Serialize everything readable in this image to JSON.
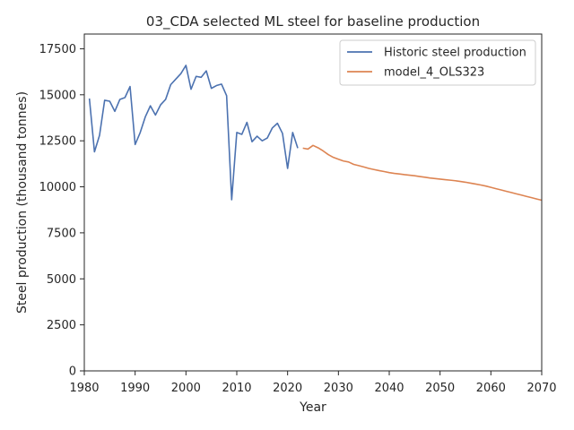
{
  "chart_data": {
    "type": "line",
    "title": "03_CDA selected ML steel for baseline production",
    "xlabel": "Year",
    "ylabel": "Steel production (thousand tonnes)",
    "xlim": [
      1980,
      2070
    ],
    "ylim": [
      0,
      18300
    ],
    "xticks": [
      1980,
      1990,
      2000,
      2010,
      2020,
      2030,
      2040,
      2050,
      2060,
      2070
    ],
    "yticks": [
      0,
      2500,
      5000,
      7500,
      10000,
      12500,
      15000,
      17500
    ],
    "grid": false,
    "legend_position": "top-right",
    "series": [
      {
        "name": "Historic steel production",
        "color": "#4c72b0",
        "x": [
          1981,
          1982,
          1983,
          1984,
          1985,
          1986,
          1987,
          1988,
          1989,
          1990,
          1991,
          1992,
          1993,
          1994,
          1995,
          1996,
          1997,
          1998,
          1999,
          2000,
          2001,
          2002,
          2003,
          2004,
          2005,
          2006,
          2007,
          2008,
          2009,
          2010,
          2011,
          2012,
          2013,
          2014,
          2015,
          2016,
          2017,
          2018,
          2019,
          2020,
          2021,
          2022
        ],
        "y": [
          14800,
          11900,
          12800,
          14700,
          14650,
          14100,
          14750,
          14850,
          15450,
          12300,
          12950,
          13800,
          14400,
          13900,
          14450,
          14750,
          15550,
          15850,
          16150,
          16600,
          15300,
          16000,
          15950,
          16300,
          15350,
          15500,
          15580,
          14950,
          9300,
          12950,
          12850,
          13500,
          12450,
          12750,
          12500,
          12650,
          13200,
          13450,
          12900,
          11000,
          12950,
          12100
        ]
      },
      {
        "name": "model_4_OLS323",
        "color": "#dd8452",
        "x": [
          2023,
          2024,
          2025,
          2026,
          2027,
          2028,
          2029,
          2030,
          2031,
          2032,
          2033,
          2034,
          2035,
          2036,
          2037,
          2038,
          2039,
          2040,
          2041,
          2042,
          2043,
          2044,
          2045,
          2046,
          2047,
          2048,
          2049,
          2050,
          2051,
          2052,
          2053,
          2054,
          2055,
          2056,
          2057,
          2058,
          2059,
          2060,
          2061,
          2062,
          2063,
          2064,
          2065,
          2066,
          2067,
          2068,
          2069,
          2070
        ],
        "y": [
          12100,
          12050,
          12250,
          12120,
          11950,
          11750,
          11600,
          11500,
          11400,
          11350,
          11220,
          11150,
          11080,
          11000,
          10940,
          10880,
          10830,
          10770,
          10730,
          10700,
          10660,
          10630,
          10600,
          10560,
          10520,
          10480,
          10450,
          10420,
          10390,
          10360,
          10330,
          10290,
          10250,
          10200,
          10150,
          10100,
          10040,
          9970,
          9900,
          9830,
          9760,
          9690,
          9620,
          9550,
          9480,
          9410,
          9340,
          9270
        ]
      }
    ]
  }
}
